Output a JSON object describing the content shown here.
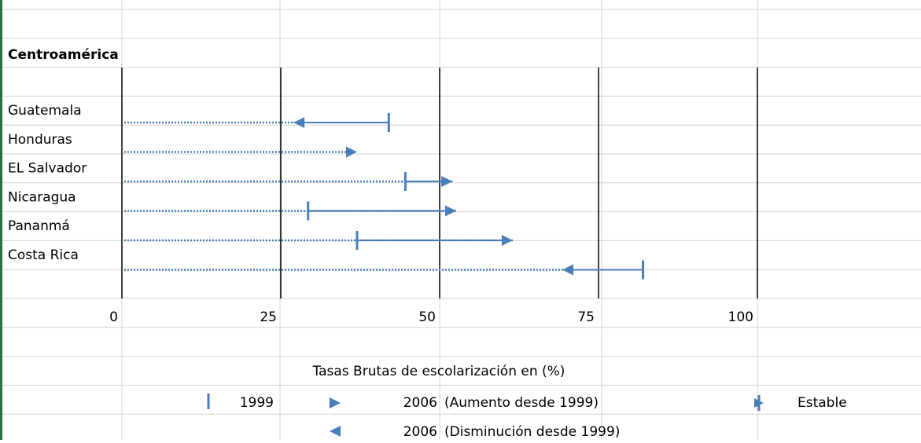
{
  "chart_data": {
    "type": "dot-arrow",
    "group_label": "Centroamérica",
    "categories": [
      "Guatemala",
      "Honduras",
      "EL Salvador",
      "Nicaragua",
      "Pananmá",
      "Costa Rica"
    ],
    "series": [
      {
        "name": "1999",
        "color": "#4a7ebb",
        "values": [
          42,
          null,
          44.6,
          29.3,
          37,
          82
        ]
      },
      {
        "name": "2006",
        "color": "#4a7ebb",
        "values": [
          27,
          37,
          52,
          52.6,
          61.5,
          69.3
        ]
      }
    ],
    "xlim": [
      0,
      100
    ],
    "xticks": [
      0,
      25,
      50,
      75,
      100
    ],
    "x_label": "Tasas Brutas de escolarización en (%)",
    "legend_notes": {
      "increase": "(Aumento desde 1999)",
      "decrease": "(Disminución desde 1999)",
      "stable": "Estable"
    },
    "grid": true
  }
}
